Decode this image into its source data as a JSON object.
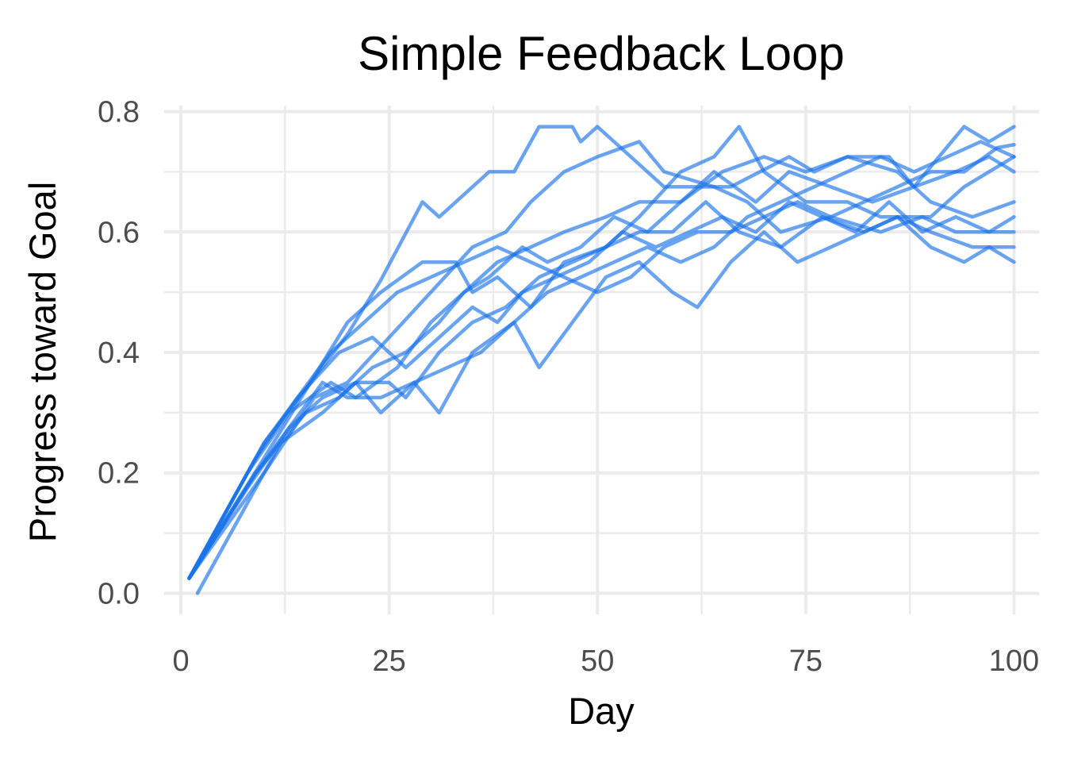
{
  "chart_data": {
    "type": "line",
    "title": "Simple Feedback Loop",
    "xlabel": "Day",
    "ylabel": "Progress toward Goal",
    "xlim": [
      -2,
      103
    ],
    "ylim": [
      -0.035,
      0.81
    ],
    "x_ticks": [
      0,
      25,
      50,
      75,
      100
    ],
    "x_tick_labels": [
      "0",
      "25",
      "50",
      "75",
      "100"
    ],
    "y_ticks": [
      0.0,
      0.2,
      0.4,
      0.6,
      0.8
    ],
    "y_tick_labels": [
      "0.0",
      "0.2",
      "0.4",
      "0.6",
      "0.8"
    ],
    "x_minor": [
      12.5,
      37.5,
      62.5,
      87.5
    ],
    "y_minor": [
      0.1,
      0.3,
      0.5,
      0.7
    ],
    "grid": true,
    "legend": "none",
    "line_color": "#1a73e8",
    "line_opacity": 0.65,
    "series": [
      {
        "points": [
          [
            1,
            0.025
          ],
          [
            10,
            0.25
          ],
          [
            20,
            0.43
          ],
          [
            24,
            0.52
          ],
          [
            29,
            0.65
          ],
          [
            31,
            0.625
          ],
          [
            33,
            0.65
          ],
          [
            37,
            0.7
          ],
          [
            40,
            0.7
          ],
          [
            43,
            0.775
          ],
          [
            47,
            0.775
          ],
          [
            48,
            0.75
          ],
          [
            50,
            0.775
          ],
          [
            54,
            0.725
          ],
          [
            58,
            0.675
          ],
          [
            66,
            0.675
          ],
          [
            73,
            0.725
          ],
          [
            76,
            0.7
          ],
          [
            80,
            0.725
          ],
          [
            85,
            0.725
          ],
          [
            88,
            0.675
          ],
          [
            91,
            0.725
          ],
          [
            94,
            0.775
          ],
          [
            97,
            0.75
          ],
          [
            100,
            0.775
          ]
        ]
      },
      {
        "points": [
          [
            1,
            0.025
          ],
          [
            10,
            0.225
          ],
          [
            20,
            0.45
          ],
          [
            24,
            0.5
          ],
          [
            29,
            0.55
          ],
          [
            33,
            0.55
          ],
          [
            35,
            0.5
          ],
          [
            38,
            0.525
          ],
          [
            42,
            0.475
          ],
          [
            46,
            0.55
          ],
          [
            51,
            0.575
          ],
          [
            55,
            0.625
          ],
          [
            60,
            0.7
          ],
          [
            64,
            0.725
          ],
          [
            67,
            0.775
          ],
          [
            70,
            0.7
          ],
          [
            75,
            0.65
          ],
          [
            80,
            0.65
          ],
          [
            84,
            0.625
          ],
          [
            90,
            0.625
          ],
          [
            94,
            0.675
          ],
          [
            97,
            0.7
          ],
          [
            100,
            0.725
          ]
        ]
      },
      {
        "points": [
          [
            1,
            0.025
          ],
          [
            10,
            0.2
          ],
          [
            16,
            0.325
          ],
          [
            20,
            0.35
          ],
          [
            25,
            0.425
          ],
          [
            30,
            0.5
          ],
          [
            35,
            0.575
          ],
          [
            39,
            0.6
          ],
          [
            42,
            0.65
          ],
          [
            46,
            0.7
          ],
          [
            50,
            0.725
          ],
          [
            55,
            0.75
          ],
          [
            58,
            0.7
          ],
          [
            64,
            0.675
          ],
          [
            68,
            0.65
          ],
          [
            72,
            0.6
          ],
          [
            78,
            0.625
          ],
          [
            84,
            0.6
          ],
          [
            89,
            0.625
          ],
          [
            93,
            0.6
          ],
          [
            97,
            0.6
          ],
          [
            100,
            0.6
          ]
        ]
      },
      {
        "points": [
          [
            1,
            0.025
          ],
          [
            8,
            0.2
          ],
          [
            13,
            0.3
          ],
          [
            18,
            0.35
          ],
          [
            21,
            0.325
          ],
          [
            26,
            0.375
          ],
          [
            30,
            0.45
          ],
          [
            34,
            0.5
          ],
          [
            38,
            0.55
          ],
          [
            42,
            0.575
          ],
          [
            46,
            0.6
          ],
          [
            51,
            0.625
          ],
          [
            55,
            0.65
          ],
          [
            60,
            0.65
          ],
          [
            65,
            0.7
          ],
          [
            70,
            0.725
          ],
          [
            75,
            0.7
          ],
          [
            80,
            0.725
          ],
          [
            86,
            0.7
          ],
          [
            90,
            0.65
          ],
          [
            95,
            0.625
          ],
          [
            100,
            0.65
          ]
        ]
      },
      {
        "points": [
          [
            1,
            0.025
          ],
          [
            9,
            0.2
          ],
          [
            13,
            0.275
          ],
          [
            17,
            0.325
          ],
          [
            21,
            0.35
          ],
          [
            25,
            0.35
          ],
          [
            27,
            0.325
          ],
          [
            31,
            0.4
          ],
          [
            35,
            0.45
          ],
          [
            39,
            0.475
          ],
          [
            43,
            0.525
          ],
          [
            47,
            0.55
          ],
          [
            51,
            0.575
          ],
          [
            55,
            0.6
          ],
          [
            59,
            0.6
          ],
          [
            63,
            0.65
          ],
          [
            67,
            0.6
          ],
          [
            72,
            0.575
          ],
          [
            77,
            0.625
          ],
          [
            82,
            0.6
          ],
          [
            86,
            0.625
          ],
          [
            90,
            0.6
          ],
          [
            95,
            0.575
          ],
          [
            100,
            0.575
          ]
        ]
      },
      {
        "points": [
          [
            2,
            0.0
          ],
          [
            6,
            0.1
          ],
          [
            12,
            0.25
          ],
          [
            17,
            0.3
          ],
          [
            21,
            0.35
          ],
          [
            24,
            0.3
          ],
          [
            28,
            0.35
          ],
          [
            31,
            0.3
          ],
          [
            35,
            0.4
          ],
          [
            40,
            0.45
          ],
          [
            43,
            0.375
          ],
          [
            47,
            0.45
          ],
          [
            51,
            0.525
          ],
          [
            55,
            0.55
          ],
          [
            59,
            0.5
          ],
          [
            62,
            0.475
          ],
          [
            66,
            0.55
          ],
          [
            70,
            0.6
          ],
          [
            74,
            0.55
          ],
          [
            78,
            0.575
          ],
          [
            82,
            0.6
          ],
          [
            86,
            0.625
          ],
          [
            90,
            0.575
          ],
          [
            94,
            0.55
          ],
          [
            97,
            0.575
          ],
          [
            100,
            0.55
          ]
        ]
      },
      {
        "points": [
          [
            1,
            0.025
          ],
          [
            9,
            0.2
          ],
          [
            15,
            0.3
          ],
          [
            19,
            0.325
          ],
          [
            23,
            0.375
          ],
          [
            27,
            0.4
          ],
          [
            31,
            0.45
          ],
          [
            34,
            0.5
          ],
          [
            37,
            0.525
          ],
          [
            41,
            0.575
          ],
          [
            44,
            0.55
          ],
          [
            48,
            0.575
          ],
          [
            52,
            0.625
          ],
          [
            56,
            0.6
          ],
          [
            60,
            0.65
          ],
          [
            64,
            0.7
          ],
          [
            69,
            0.65
          ],
          [
            73,
            0.7
          ],
          [
            78,
            0.675
          ],
          [
            83,
            0.65
          ],
          [
            88,
            0.675
          ],
          [
            93,
            0.7
          ],
          [
            97,
            0.725
          ],
          [
            100,
            0.7
          ]
        ]
      },
      {
        "points": [
          [
            1,
            0.025
          ],
          [
            9,
            0.225
          ],
          [
            14,
            0.325
          ],
          [
            19,
            0.4
          ],
          [
            23,
            0.425
          ],
          [
            27,
            0.375
          ],
          [
            31,
            0.425
          ],
          [
            35,
            0.475
          ],
          [
            38,
            0.45
          ],
          [
            41,
            0.5
          ],
          [
            45,
            0.525
          ],
          [
            49,
            0.55
          ],
          [
            53,
            0.6
          ],
          [
            57,
            0.575
          ],
          [
            61,
            0.6
          ],
          [
            65,
            0.625
          ],
          [
            69,
            0.6
          ],
          [
            73,
            0.65
          ],
          [
            77,
            0.625
          ],
          [
            81,
            0.6
          ],
          [
            85,
            0.65
          ],
          [
            89,
            0.6
          ],
          [
            93,
            0.625
          ],
          [
            97,
            0.6
          ],
          [
            100,
            0.625
          ]
        ]
      },
      {
        "points": [
          [
            1,
            0.025
          ],
          [
            8,
            0.175
          ],
          [
            13,
            0.275
          ],
          [
            17,
            0.35
          ],
          [
            20,
            0.325
          ],
          [
            24,
            0.325
          ],
          [
            28,
            0.35
          ],
          [
            32,
            0.375
          ],
          [
            36,
            0.4
          ],
          [
            40,
            0.45
          ],
          [
            44,
            0.5
          ],
          [
            48,
            0.525
          ],
          [
            52,
            0.55
          ],
          [
            56,
            0.575
          ],
          [
            60,
            0.55
          ],
          [
            64,
            0.575
          ],
          [
            68,
            0.625
          ],
          [
            72,
            0.65
          ],
          [
            76,
            0.675
          ],
          [
            80,
            0.7
          ],
          [
            84,
            0.725
          ],
          [
            88,
            0.7
          ],
          [
            92,
            0.725
          ],
          [
            96,
            0.75
          ],
          [
            100,
            0.725
          ]
        ]
      },
      {
        "points": [
          [
            1,
            0.025
          ],
          [
            10,
            0.25
          ],
          [
            14,
            0.325
          ],
          [
            18,
            0.4
          ],
          [
            22,
            0.45
          ],
          [
            26,
            0.5
          ],
          [
            30,
            0.525
          ],
          [
            34,
            0.55
          ],
          [
            38,
            0.575
          ],
          [
            42,
            0.55
          ],
          [
            46,
            0.525
          ],
          [
            50,
            0.5
          ],
          [
            54,
            0.525
          ],
          [
            58,
            0.575
          ],
          [
            62,
            0.6
          ],
          [
            66,
            0.6
          ],
          [
            70,
            0.625
          ],
          [
            74,
            0.65
          ],
          [
            78,
            0.625
          ],
          [
            82,
            0.65
          ],
          [
            86,
            0.675
          ],
          [
            90,
            0.7
          ],
          [
            94,
            0.7
          ],
          [
            98,
            0.74
          ],
          [
            100,
            0.745
          ]
        ]
      }
    ]
  }
}
